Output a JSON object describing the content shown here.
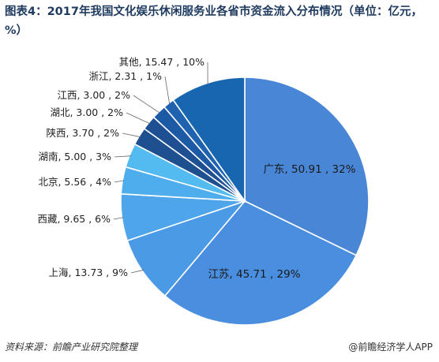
{
  "title": "图表4：2017年我国文化娱乐休闲服务业各省市资金流入分布情况（单位：亿元，%）",
  "source": "资料来源：前瞻产业研究院整理",
  "credit": "@前瞻经济学人APP",
  "chart_data": {
    "type": "pie",
    "title": "图表4：2017年我国文化娱乐休闲服务业各省市资金流入分布情况（单位：亿元，%）",
    "slices": [
      {
        "name": "广东",
        "value": 50.91,
        "percent": 32,
        "label": "广东, 50.91 , 32%",
        "color": "#4a86d6"
      },
      {
        "name": "江苏",
        "value": 45.71,
        "percent": 29,
        "label": "江苏, 45.71 , 29%",
        "color": "#4a8ee0"
      },
      {
        "name": "上海",
        "value": 13.73,
        "percent": 9,
        "label": "上海, 13.73 , 9%",
        "color": "#4b9ae6"
      },
      {
        "name": "西藏",
        "value": 9.65,
        "percent": 6,
        "label": "西藏, 9.65 , 6%",
        "color": "#4fa5ea"
      },
      {
        "name": "北京",
        "value": 5.56,
        "percent": 4,
        "label": "北京, 5.56 , 4%",
        "color": "#4eaeed"
      },
      {
        "name": "湖南",
        "value": 5.0,
        "percent": 3,
        "label": "湖南, 5.00 , 3%",
        "color": "#53bbf0"
      },
      {
        "name": "陕西",
        "value": 3.7,
        "percent": 2,
        "label": "陕西, 3.70 , 2%",
        "color": "#1e4f8f"
      },
      {
        "name": "湖北",
        "value": 3.0,
        "percent": 2,
        "label": "湖北, 3.00 , 2%",
        "color": "#1f4f93"
      },
      {
        "name": "江西",
        "value": 3.0,
        "percent": 2,
        "label": "江西, 3.00 , 2%",
        "color": "#1d5aa6"
      },
      {
        "name": "浙江",
        "value": 2.31,
        "percent": 1,
        "label": "浙江, 2.31 , 1%",
        "color": "#1f63b0"
      },
      {
        "name": "其他",
        "value": 15.47,
        "percent": 10,
        "label": "其他, 15.47 , 10%",
        "color": "#1966b0"
      }
    ]
  }
}
